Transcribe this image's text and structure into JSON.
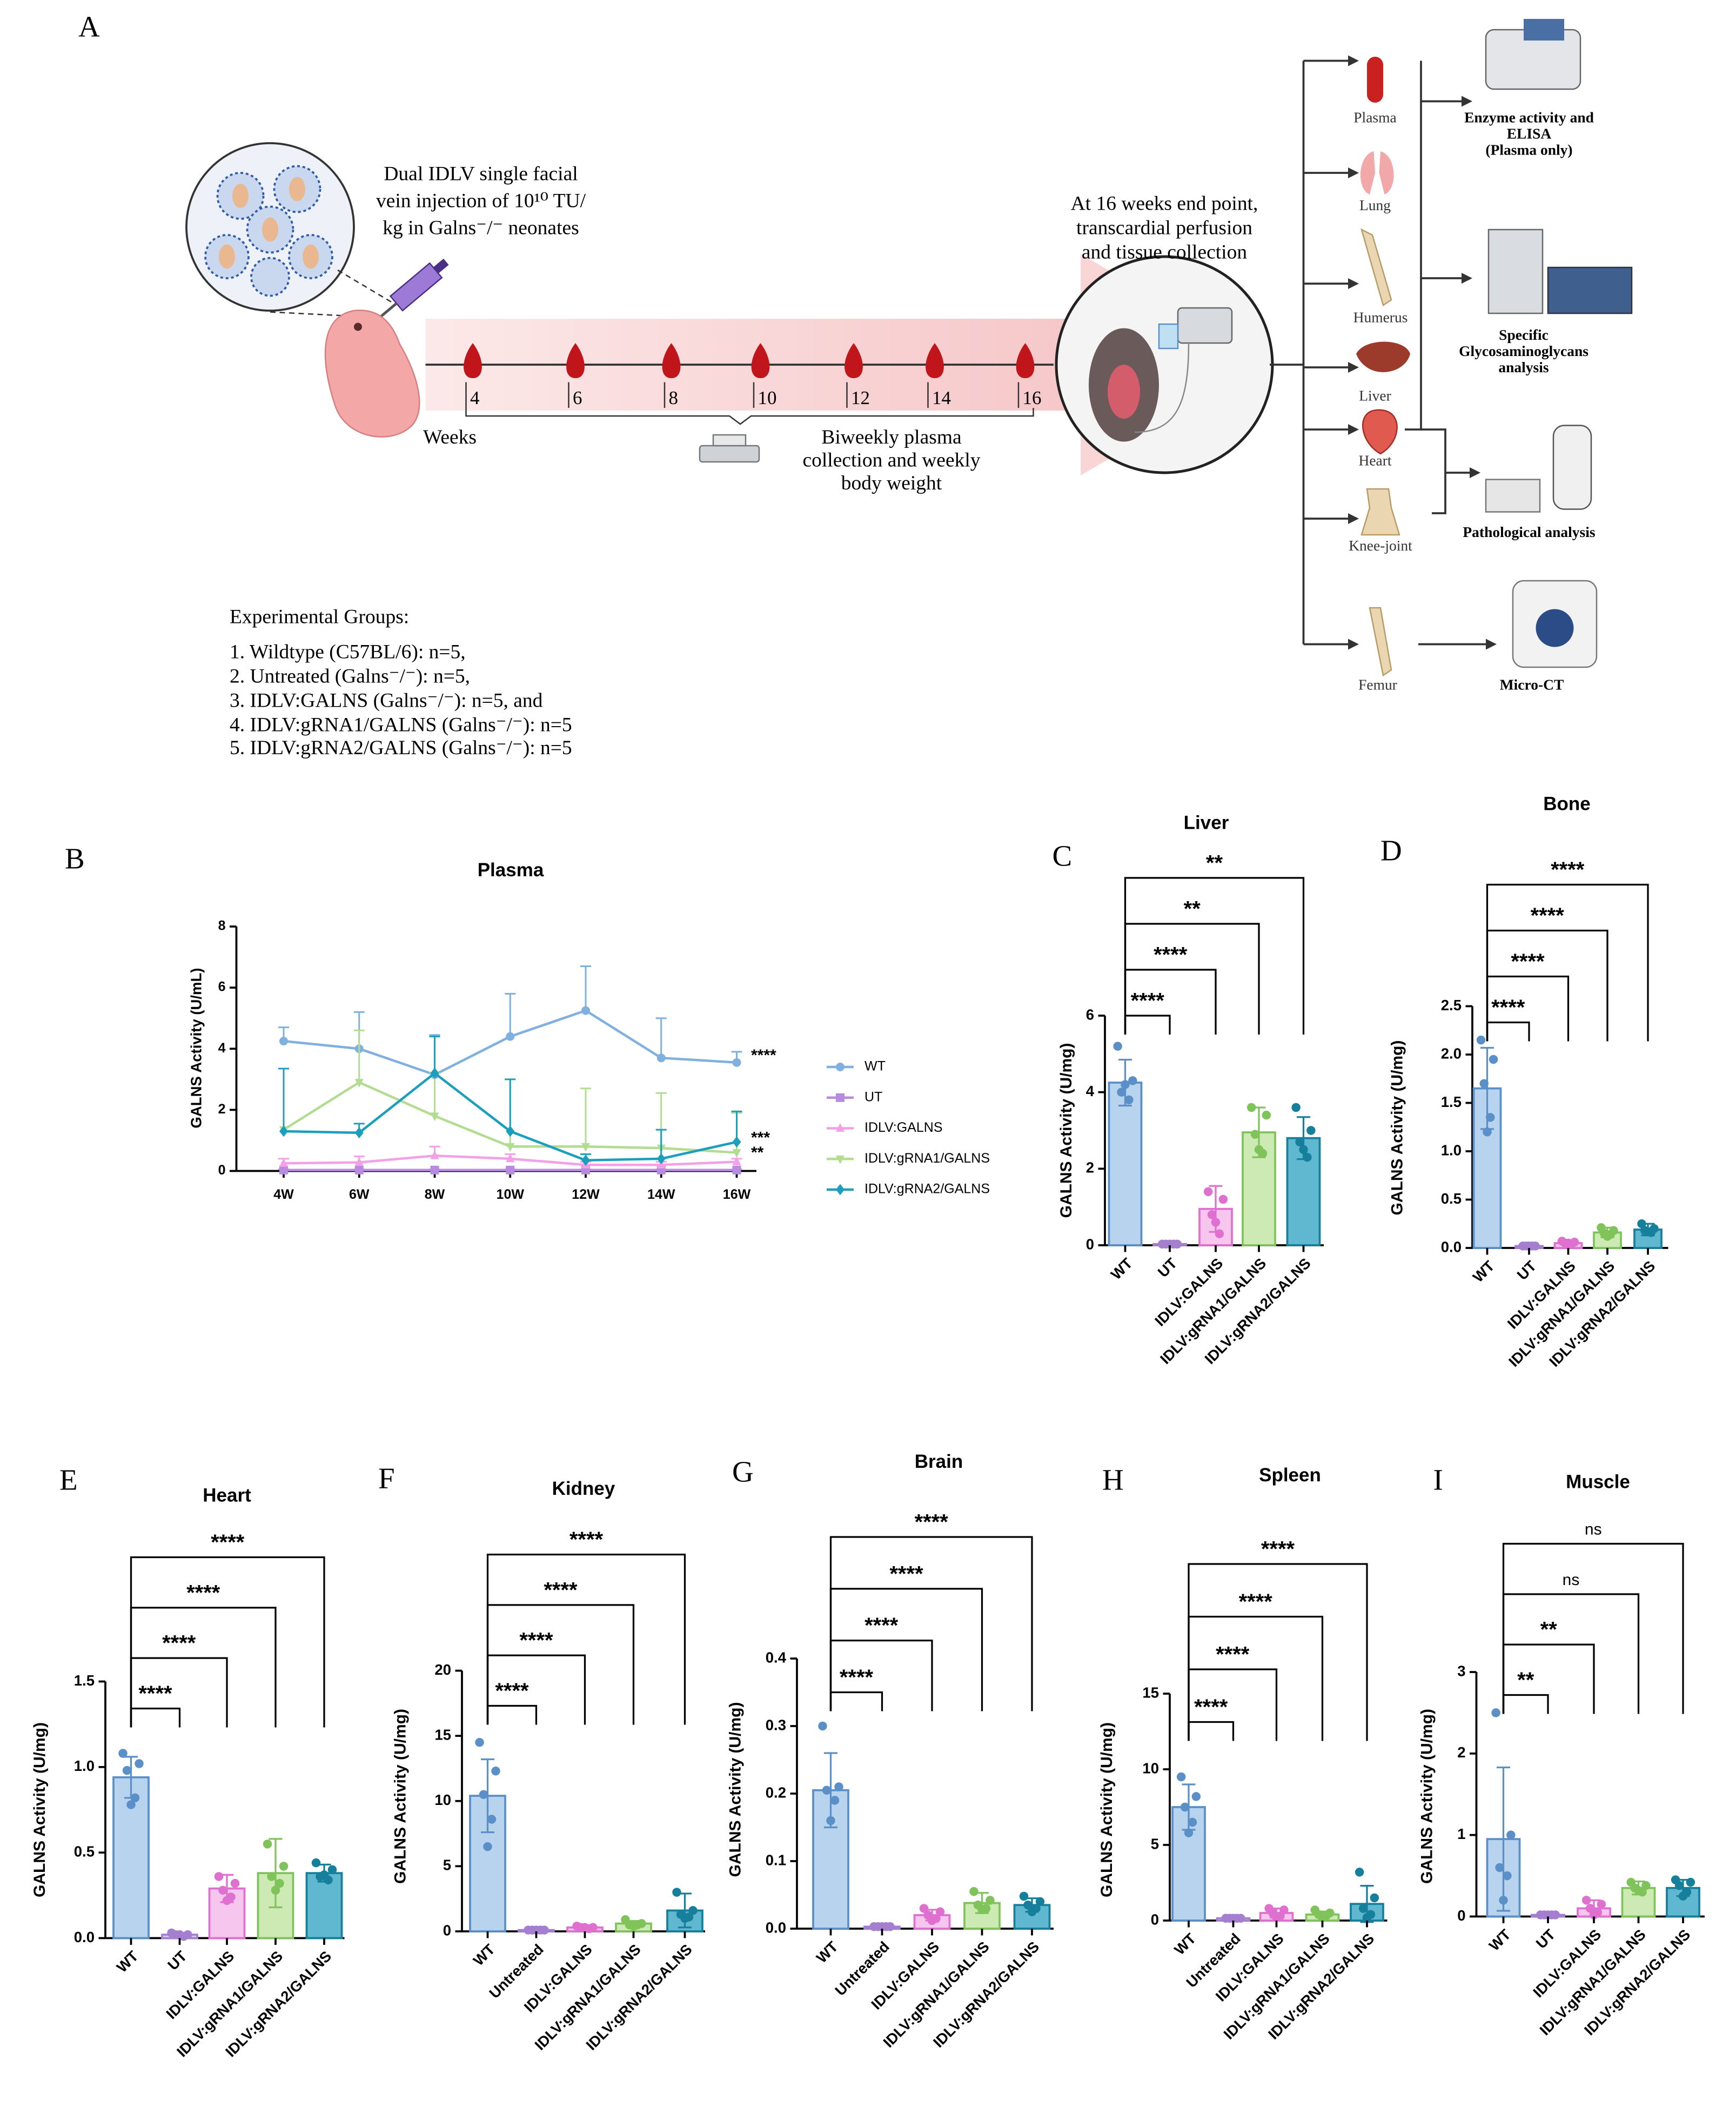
{
  "diagram": {
    "panel": "A",
    "injection": [
      "Dual IDLV single facial",
      "vein injection of 10¹⁰ TU/",
      "kg in Galns⁻/⁻ neonates"
    ],
    "weeks_label": "Weeks",
    "weeks": [
      4,
      6,
      8,
      10,
      12,
      14,
      16
    ],
    "plasma_collection": [
      "Biweekly plasma",
      "collection and weekly",
      "body weight"
    ],
    "endpoint": [
      "At 16 weeks end point,",
      "transcardial perfusion",
      "and tissue collection"
    ],
    "tissues": [
      "Plasma",
      "Lung",
      "Humerus",
      "Liver",
      "Heart",
      "Knee-joint",
      "Femur"
    ],
    "analyses": [
      [
        "Enzyme activity and",
        "ELISA",
        "(Plasma only)"
      ],
      [
        "Specific",
        "Glycosaminoglycans",
        "analysis"
      ],
      [
        "Pathological analysis"
      ],
      [
        "Micro-CT"
      ]
    ],
    "groups_title": "Experimental Groups:",
    "groups": [
      "1.  Wildtype (C57BL/6): n=5,",
      "2.  Untreated (Galns⁻/⁻): n=5,",
      "3.  IDLV:GALNS (Galns⁻/⁻): n=5, and",
      "4.  IDLV:gRNA1/GALNS (Galns⁻/⁻): n=5",
      "5.  IDLV:gRNA2/GALNS (Galns⁻/⁻): n=5"
    ]
  },
  "chart_data": [
    {
      "type": "line",
      "panel": "B",
      "title": "Plasma",
      "y_label": "GALNS Activity (U/mL)",
      "categories": [
        "4W",
        "6W",
        "8W",
        "10W",
        "12W",
        "14W",
        "16W"
      ],
      "ylim": [
        0,
        8
      ],
      "yticks": [
        0,
        2,
        4,
        6,
        8
      ],
      "series": [
        {
          "name": "WT",
          "color": "#7fb0e0",
          "marker": "circle",
          "values": [
            4.25,
            4.0,
            3.15,
            4.4,
            5.25,
            3.7,
            3.55
          ],
          "errors": [
            0.45,
            1.2,
            1.3,
            1.4,
            1.45,
            1.3,
            0.35
          ]
        },
        {
          "name": "UT",
          "color": "#b68be0",
          "marker": "square",
          "values": [
            0.03,
            0.03,
            0.03,
            0.03,
            0.03,
            0.03,
            0.03
          ],
          "errors": [
            0.02,
            0.02,
            0.02,
            0.02,
            0.02,
            0.02,
            0.02
          ]
        },
        {
          "name": "IDLV:GALNS",
          "color": "#f4a0e6",
          "marker": "triangle",
          "values": [
            0.25,
            0.28,
            0.5,
            0.4,
            0.2,
            0.2,
            0.3
          ],
          "errors": [
            0.15,
            0.2,
            0.3,
            0.15,
            0.1,
            0.1,
            0.1
          ]
        },
        {
          "name": "IDLV:gRNA1/GALNS",
          "color": "#b2dc8f",
          "marker": "triangle-down",
          "values": [
            1.35,
            2.9,
            1.8,
            0.8,
            0.8,
            0.75,
            0.6
          ],
          "errors": [
            2.0,
            1.7,
            1.4,
            2.2,
            1.9,
            1.8,
            1.3
          ]
        },
        {
          "name": "IDLV:gRNA2/GALNS",
          "color": "#1b9fbd",
          "marker": "diamond",
          "values": [
            1.3,
            1.25,
            3.2,
            1.3,
            0.35,
            0.4,
            0.95
          ],
          "errors": [
            2.05,
            0.3,
            1.2,
            1.7,
            0.2,
            0.95,
            1.0
          ]
        }
      ],
      "annotations": [
        "****",
        "***",
        "**"
      ]
    },
    {
      "type": "bar",
      "panel": "C",
      "title": "Liver",
      "y_label": "GALNS Activity (U/mg)",
      "categories": [
        "WT",
        "UT",
        "IDLV:GALNS",
        "IDLV:gRNA1/GALNS",
        "IDLV:gRNA2/GALNS"
      ],
      "values": [
        4.25,
        0.03,
        0.95,
        2.95,
        2.8
      ],
      "errors": [
        0.6,
        0.02,
        0.6,
        0.65,
        0.55
      ],
      "points": [
        [
          5.2,
          4.3,
          4.0,
          3.8,
          4.2
        ],
        [
          0.03,
          0.03,
          0.03,
          0.03,
          0.03
        ],
        [
          1.4,
          1.2,
          0.8,
          0.3,
          0.6
        ],
        [
          3.6,
          3.4,
          2.9,
          2.4,
          2.5
        ],
        [
          3.6,
          3.0,
          2.7,
          2.3,
          2.5
        ]
      ],
      "colors": [
        "#b7d3ee",
        "#dccbf0",
        "#f7c6ee",
        "#cdeab5",
        "#5fb8cf"
      ],
      "edge_colors": [
        "#5a8fc8",
        "#a47fd0",
        "#e070cf",
        "#7fc35a",
        "#16809c"
      ],
      "ylim": [
        0,
        6
      ],
      "yticks": [
        0,
        2,
        4,
        6
      ],
      "annotations": [
        "****",
        "****",
        "**",
        "**"
      ]
    },
    {
      "type": "bar",
      "panel": "D",
      "title": "Bone",
      "y_label": "GALNS Activity (U/mg)",
      "categories": [
        "WT",
        "UT",
        "IDLV:GALNS",
        "IDLV:gRNA1/GALNS",
        "IDLV:gRNA2/GALNS"
      ],
      "values": [
        1.65,
        0.02,
        0.05,
        0.16,
        0.19
      ],
      "errors": [
        0.42,
        0.01,
        0.02,
        0.05,
        0.06
      ],
      "points": [
        [
          2.15,
          1.95,
          1.7,
          1.35,
          1.2
        ],
        [
          0.02,
          0.02,
          0.02,
          0.02,
          0.02
        ],
        [
          0.07,
          0.06,
          0.05,
          0.04,
          0.05
        ],
        [
          0.21,
          0.18,
          0.15,
          0.14,
          0.12
        ],
        [
          0.25,
          0.2,
          0.18,
          0.16,
          0.17
        ]
      ],
      "colors": [
        "#b7d3ee",
        "#dccbf0",
        "#f7c6ee",
        "#cdeab5",
        "#5fb8cf"
      ],
      "edge_colors": [
        "#5a8fc8",
        "#a47fd0",
        "#e070cf",
        "#7fc35a",
        "#16809c"
      ],
      "ylim": [
        0,
        2.5
      ],
      "yticks": [
        {
          "value": 0,
          "label": "0.0"
        },
        0.5,
        {
          "value": 1,
          "label": "1.0"
        },
        1.5,
        {
          "value": 2,
          "label": "2.0"
        },
        2.5
      ],
      "annotations": [
        "****",
        "****",
        "****",
        "****"
      ]
    },
    {
      "type": "bar",
      "panel": "E",
      "title": "Heart",
      "y_label": "GALNS Activity (U/mg)",
      "categories": [
        "WT",
        "UT",
        "IDLV:GALNS",
        "IDLV:gRNA1/GALNS",
        "IDLV:gRNA2/GALNS"
      ],
      "values": [
        0.94,
        0.02,
        0.29,
        0.38,
        0.38
      ],
      "errors": [
        0.12,
        0.01,
        0.08,
        0.2,
        0.05
      ],
      "points": [
        [
          1.08,
          1.02,
          0.98,
          0.82,
          0.78
        ],
        [
          0.03,
          0.02,
          0.02,
          0.01,
          0.02
        ],
        [
          0.36,
          0.32,
          0.28,
          0.24,
          0.22
        ],
        [
          0.55,
          0.42,
          0.36,
          0.32,
          0.28
        ],
        [
          0.44,
          0.4,
          0.36,
          0.34,
          0.37
        ]
      ],
      "colors": [
        "#b7d3ee",
        "#dccbf0",
        "#f7c6ee",
        "#cdeab5",
        "#5fb8cf"
      ],
      "edge_colors": [
        "#5a8fc8",
        "#a47fd0",
        "#e070cf",
        "#7fc35a",
        "#16809c"
      ],
      "ylim": [
        0,
        1.5
      ],
      "yticks": [
        {
          "value": 0,
          "label": "0.0"
        },
        0.5,
        {
          "value": 1,
          "label": "1.0"
        },
        1.5
      ],
      "annotations": [
        "****",
        "****",
        "****",
        "****"
      ]
    },
    {
      "type": "bar",
      "panel": "F",
      "title": "Kidney",
      "y_label": "GALNS Activity (U/mg)",
      "categories": [
        "WT",
        "Untreated",
        "IDLV:GALNS",
        "IDLV:gRNA1/GALNS",
        "IDLV:gRNA2/GALNS"
      ],
      "values": [
        10.4,
        0.1,
        0.3,
        0.6,
        1.6
      ],
      "errors": [
        2.8,
        0.05,
        0.1,
        0.2,
        1.3
      ],
      "points": [
        [
          14.5,
          12.3,
          10.5,
          8.6,
          6.5
        ],
        [
          0.1,
          0.1,
          0.1,
          0.1,
          0.1
        ],
        [
          0.4,
          0.3,
          0.3,
          0.2,
          0.3
        ],
        [
          0.9,
          0.6,
          0.5,
          0.5,
          0.4
        ],
        [
          3.0,
          1.6,
          1.3,
          1.1,
          1.0
        ]
      ],
      "colors": [
        "#b7d3ee",
        "#dccbf0",
        "#f7c6ee",
        "#cdeab5",
        "#5fb8cf"
      ],
      "edge_colors": [
        "#5a8fc8",
        "#a47fd0",
        "#e070cf",
        "#7fc35a",
        "#16809c"
      ],
      "ylim": [
        0,
        20
      ],
      "yticks": [
        0,
        5,
        10,
        15,
        20
      ],
      "annotations": [
        "****",
        "****",
        "****",
        "****"
      ]
    },
    {
      "type": "bar",
      "panel": "G",
      "title": "Brain",
      "y_label": "GALNS Activity (U/mg)",
      "categories": [
        "WT",
        "Untreated",
        "IDLV:GALNS",
        "IDLV:gRNA1/GALNS",
        "IDLV:gRNA2/GALNS"
      ],
      "values": [
        0.205,
        0.003,
        0.02,
        0.038,
        0.035
      ],
      "errors": [
        0.055,
        0.001,
        0.008,
        0.015,
        0.01
      ],
      "points": [
        [
          0.3,
          0.21,
          0.205,
          0.19,
          0.16
        ],
        [
          0.003,
          0.003,
          0.003,
          0.003,
          0.003
        ],
        [
          0.03,
          0.025,
          0.02,
          0.015,
          0.012
        ],
        [
          0.055,
          0.042,
          0.035,
          0.03,
          0.028
        ],
        [
          0.048,
          0.04,
          0.035,
          0.03,
          0.025
        ]
      ],
      "colors": [
        "#b7d3ee",
        "#dccbf0",
        "#f7c6ee",
        "#cdeab5",
        "#5fb8cf"
      ],
      "edge_colors": [
        "#5a8fc8",
        "#a47fd0",
        "#e070cf",
        "#7fc35a",
        "#16809c"
      ],
      "ylim": [
        0,
        0.4
      ],
      "yticks": [
        {
          "value": 0,
          "label": "0.0"
        },
        0.1,
        0.2,
        0.3,
        0.4
      ],
      "annotations": [
        "****",
        "****",
        "****",
        "****"
      ]
    },
    {
      "type": "bar",
      "panel": "H",
      "title": "Spleen",
      "y_label": "GALNS Activity (U/mg)",
      "categories": [
        "WT",
        "Untreated",
        "IDLV:GALNS",
        "IDLV:gRNA1/GALNS",
        "IDLV:gRNA2/GALNS"
      ],
      "values": [
        7.5,
        0.15,
        0.5,
        0.4,
        1.1
      ],
      "errors": [
        1.5,
        0.05,
        0.3,
        0.2,
        1.2
      ],
      "points": [
        [
          9.5,
          8.2,
          7.5,
          6.5,
          5.8
        ],
        [
          0.15,
          0.15,
          0.15,
          0.15,
          0.15
        ],
        [
          0.8,
          0.7,
          0.5,
          0.3,
          0.2
        ],
        [
          0.7,
          0.5,
          0.4,
          0.3,
          0.2
        ],
        [
          3.2,
          1.5,
          0.8,
          0.4,
          0.2
        ]
      ],
      "colors": [
        "#b7d3ee",
        "#dccbf0",
        "#f7c6ee",
        "#cdeab5",
        "#5fb8cf"
      ],
      "edge_colors": [
        "#5a8fc8",
        "#a47fd0",
        "#e070cf",
        "#7fc35a",
        "#16809c"
      ],
      "ylim": [
        0,
        15
      ],
      "yticks": [
        0,
        5,
        10,
        15
      ],
      "annotations": [
        "****",
        "****",
        "****",
        "****"
      ]
    },
    {
      "type": "bar",
      "panel": "I",
      "title": "Muscle",
      "y_label": "GALNS Activity (U/mg)",
      "categories": [
        "WT",
        "UT",
        "IDLV:GALNS",
        "IDLV:gRNA1/GALNS",
        "IDLV:gRNA2/GALNS"
      ],
      "values": [
        0.95,
        0.02,
        0.1,
        0.35,
        0.35
      ],
      "errors": [
        0.88,
        0.01,
        0.1,
        0.08,
        0.1
      ],
      "points": [
        [
          2.5,
          1.0,
          0.6,
          0.5,
          0.2
        ],
        [
          0.02,
          0.02,
          0.02,
          0.02,
          0.02
        ],
        [
          0.2,
          0.15,
          0.1,
          0.05,
          0.02
        ],
        [
          0.42,
          0.38,
          0.35,
          0.3,
          0.32
        ],
        [
          0.45,
          0.42,
          0.38,
          0.3,
          0.25
        ]
      ],
      "colors": [
        "#b7d3ee",
        "#dccbf0",
        "#f7c6ee",
        "#cdeab5",
        "#5fb8cf"
      ],
      "edge_colors": [
        "#5a8fc8",
        "#a47fd0",
        "#e070cf",
        "#7fc35a",
        "#16809c"
      ],
      "ylim": [
        0,
        3
      ],
      "yticks": [
        0,
        1,
        2,
        3
      ],
      "annotations": [
        "**",
        "**",
        "ns",
        "ns"
      ]
    }
  ]
}
